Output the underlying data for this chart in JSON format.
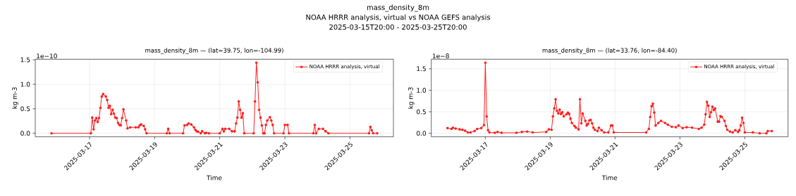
{
  "chart_data": [
    {
      "type": "line",
      "title": "mass_density_8m — (lat=39.75, lon=-104.99)",
      "xlabel": "Time",
      "ylabel": "kg m-3",
      "annotations": [
        "mass_density_8m",
        "NOAA HRRR analysis, virtual vs NOAA GEFS analysis",
        "2025-03-15T20:00 - 2025-03-25T20:00",
        "1e−10"
      ],
      "x": [
        "2025-03-15T20:00",
        "2025-03-17T01:00",
        "2025-03-17T02:00",
        "2025-03-17T03:00",
        "2025-03-17T04:00",
        "2025-03-17T05:00",
        "2025-03-17T06:00",
        "2025-03-17T07:00",
        "2025-03-17T08:00",
        "2025-03-17T09:00",
        "2025-03-17T10:00",
        "2025-03-17T12:00",
        "2025-03-17T13:00",
        "2025-03-17T14:00",
        "2025-03-17T15:00",
        "2025-03-17T16:00",
        "2025-03-17T17:00",
        "2025-03-17T18:00",
        "2025-03-17T19:00",
        "2025-03-17T20:00",
        "2025-03-17T21:00",
        "2025-03-17T22:00",
        "2025-03-17T23:00",
        "2025-03-18T00:00",
        "2025-03-18T01:00",
        "2025-03-18T03:00",
        "2025-03-18T04:00",
        "2025-03-18T06:00",
        "2025-03-18T10:00",
        "2025-03-18T12:00",
        "2025-03-18T13:00",
        "2025-03-18T14:00",
        "2025-03-18T16:00",
        "2025-03-18T17:00",
        "2025-03-18T18:00",
        "2025-03-19T09:00",
        "2025-03-19T10:00",
        "2025-03-19T11:00",
        "2025-03-19T21:00",
        "2025-03-19T22:00",
        "2025-03-20T00:00",
        "2025-03-20T01:00",
        "2025-03-20T03:00",
        "2025-03-20T05:00",
        "2025-03-20T06:00",
        "2025-03-20T07:00",
        "2025-03-20T08:00",
        "2025-03-20T10:00",
        "2025-03-20T11:00",
        "2025-03-20T13:00",
        "2025-03-20T14:00",
        "2025-03-20T16:00",
        "2025-03-21T00:00",
        "2025-03-21T02:00",
        "2025-03-21T03:00",
        "2025-03-21T04:00",
        "2025-03-21T07:00",
        "2025-03-21T09:00",
        "2025-03-21T11:00",
        "2025-03-21T12:00",
        "2025-03-21T13:00",
        "2025-03-21T14:00",
        "2025-03-21T15:00",
        "2025-03-21T16:00",
        "2025-03-21T17:00",
        "2025-03-21T18:00",
        "2025-03-22T01:00",
        "2025-03-22T02:00",
        "2025-03-22T03:00",
        "2025-03-22T04:00",
        "2025-03-22T05:00",
        "2025-03-22T06:00",
        "2025-03-22T07:00",
        "2025-03-22T08:00",
        "2025-03-22T09:00",
        "2025-03-22T10:00",
        "2025-03-22T11:00",
        "2025-03-22T13:00",
        "2025-03-22T14:00",
        "2025-03-22T15:00",
        "2025-03-22T16:00",
        "2025-03-22T23:00",
        "2025-03-23T00:00",
        "2025-03-23T02:00",
        "2025-03-23T03:00",
        "2025-03-23T21:00",
        "2025-03-23T22:00",
        "2025-03-23T23:00",
        "2025-03-24T01:00",
        "2025-03-24T04:00",
        "2025-03-24T06:00",
        "2025-03-24T08:00",
        "2025-03-25T14:00",
        "2025-03-25T15:00",
        "2025-03-25T16:00",
        "2025-03-25T17:00",
        "2025-03-25T20:00"
      ],
      "series": [
        {
          "name": "NOAA HRRR analysis, virtual",
          "color": "#ff2020",
          "values": [
            0,
            0,
            0.32,
            0.08,
            0.26,
            0.31,
            0.23,
            0.31,
            0.52,
            0.75,
            0.8,
            0.75,
            0.68,
            0.52,
            0.56,
            0.39,
            0.48,
            0.4,
            0.32,
            0.31,
            0.21,
            0.17,
            0.16,
            0.31,
            0.49,
            0.26,
            0.1,
            0.12,
            0.12,
            0.12,
            0.16,
            0.18,
            0.15,
            0.08,
            0,
            0,
            0.09,
            0,
            0,
            0.16,
            0.17,
            0.2,
            0.18,
            0.12,
            0.07,
            0.04,
            0.03,
            0,
            0.04,
            0,
            0.01,
            0,
            0,
            0.09,
            0.04,
            0.09,
            0.09,
            0.04,
            0.04,
            0.2,
            0.32,
            0.65,
            0.48,
            0.32,
            0.41,
            0,
            0,
            0.65,
            1.44,
            1.04,
            0.48,
            0.32,
            0.16,
            0,
            0,
            0.17,
            0.26,
            0.33,
            0.26,
            0.17,
            0,
            0,
            0.17,
            0.17,
            0,
            0,
            0.17,
            0,
            0.09,
            0.09,
            0.04,
            0,
            0,
            0.13,
            0.06,
            0,
            0
          ]
        }
      ],
      "marker": "circle",
      "grid": true,
      "legend": "top right",
      "xlim": [
        "2025-03-15T08:00",
        "2025-03-26T08:00"
      ],
      "xticks": [
        "2025-03-17",
        "2025-03-19",
        "2025-03-21",
        "2025-03-23",
        "2025-03-25"
      ],
      "ylim": [
        -0.072,
        1.512
      ],
      "yticks": [
        {
          "value": 0,
          "label": "0.0"
        },
        {
          "value": 0.5,
          "label": "0.5"
        },
        {
          "value": 1,
          "label": "1.0"
        },
        {
          "value": 1.5,
          "label": "1.5"
        }
      ]
    },
    {
      "type": "line",
      "title": "mass_density_8m — (lat=33.76, lon=-84.40)",
      "xlabel": "Time",
      "ylabel": "kg m-3",
      "annotations": [
        "1e−8"
      ],
      "x": [
        "2025-03-15T20:00",
        "2025-03-15T23:00",
        "2025-03-16T00:00",
        "2025-03-16T02:00",
        "2025-03-16T05:00",
        "2025-03-16T07:00",
        "2025-03-16T09:00",
        "2025-03-16T11:00",
        "2025-03-16T13:00",
        "2025-03-16T16:00",
        "2025-03-16T18:00",
        "2025-03-16T21:00",
        "2025-03-16T23:00",
        "2025-03-17T00:00",
        "2025-03-17T01:00",
        "2025-03-17T02:00",
        "2025-03-17T03:00",
        "2025-03-17T07:00",
        "2025-03-17T09:00",
        "2025-03-17T12:00",
        "2025-03-17T23:00",
        "2025-03-18T03:00",
        "2025-03-18T07:00",
        "2025-03-18T11:00",
        "2025-03-18T21:00",
        "2025-03-18T23:00",
        "2025-03-19T01:00",
        "2025-03-19T02:00",
        "2025-03-19T03:00",
        "2025-03-19T04:00",
        "2025-03-19T05:00",
        "2025-03-19T06:00",
        "2025-03-19T07:00",
        "2025-03-19T08:00",
        "2025-03-19T09:00",
        "2025-03-19T10:00",
        "2025-03-19T12:00",
        "2025-03-19T13:00",
        "2025-03-19T14:00",
        "2025-03-19T15:00",
        "2025-03-19T16:00",
        "2025-03-19T18:00",
        "2025-03-19T19:00",
        "2025-03-19T21:00",
        "2025-03-19T22:00",
        "2025-03-19T23:00",
        "2025-03-20T00:00",
        "2025-03-20T02:00",
        "2025-03-20T03:00",
        "2025-03-20T04:00",
        "2025-03-20T05:00",
        "2025-03-20T06:00",
        "2025-03-20T07:00",
        "2025-03-20T08:00",
        "2025-03-20T09:00",
        "2025-03-20T11:00",
        "2025-03-20T12:00",
        "2025-03-20T14:00",
        "2025-03-20T16:00",
        "2025-03-20T19:00",
        "2025-03-20T21:00",
        "2025-03-20T22:00",
        "2025-03-20T23:00",
        "2025-03-21T23:00",
        "2025-03-22T01:00",
        "2025-03-22T02:00",
        "2025-03-22T03:00",
        "2025-03-22T04:00",
        "2025-03-22T05:00",
        "2025-03-22T06:00",
        "2025-03-22T08:00",
        "2025-03-22T10:00",
        "2025-03-22T13:00",
        "2025-03-22T15:00",
        "2025-03-22T18:00",
        "2025-03-22T21:00",
        "2025-03-22T23:00",
        "2025-03-23T02:00",
        "2025-03-23T05:00",
        "2025-03-23T09:00",
        "2025-03-23T14:00",
        "2025-03-23T16:00",
        "2025-03-23T18:00",
        "2025-03-23T19:00",
        "2025-03-23T20:00",
        "2025-03-23T21:00",
        "2025-03-23T22:00",
        "2025-03-23T23:00",
        "2025-03-24T00:00",
        "2025-03-24T01:00",
        "2025-03-24T02:00",
        "2025-03-24T04:00",
        "2025-03-24T05:00",
        "2025-03-24T06:00",
        "2025-03-24T07:00",
        "2025-03-24T09:00",
        "2025-03-24T10:00",
        "2025-03-24T11:00",
        "2025-03-24T13:00",
        "2025-03-24T15:00",
        "2025-03-24T17:00",
        "2025-03-24T19:00",
        "2025-03-24T20:00",
        "2025-03-24T21:00",
        "2025-03-24T22:00",
        "2025-03-24T23:00",
        "2025-03-25T00:00",
        "2025-03-25T06:00",
        "2025-03-25T11:00",
        "2025-03-25T16:00",
        "2025-03-25T17:00",
        "2025-03-25T20:00"
      ],
      "series": [
        {
          "name": "NOAA HRRR analysis, virtual",
          "color": "#ff2020",
          "values": [
            0.12,
            0.1,
            0.13,
            0.11,
            0.09,
            0.08,
            0.06,
            0.02,
            0.02,
            0.05,
            0.1,
            0.12,
            0.19,
            1.64,
            0.39,
            0.07,
            0.02,
            0.01,
            0.03,
            0.01,
            0.01,
            0.03,
            0.04,
            0.02,
            0.03,
            0.09,
            0.08,
            0.39,
            0.58,
            0.79,
            0.52,
            0.46,
            0.55,
            0.45,
            0.49,
            0.39,
            0.44,
            0.48,
            0.45,
            0.34,
            0.24,
            0.17,
            0.13,
            0.09,
            0.79,
            0.23,
            0.46,
            0.29,
            0.18,
            0.22,
            0.3,
            0.31,
            0.23,
            0.13,
            0.08,
            0.05,
            0.13,
            0.07,
            0.02,
            0.02,
            0.18,
            0.18,
            0.02,
            0.02,
            0.1,
            0.38,
            0.63,
            0.69,
            0.48,
            0.18,
            0.24,
            0.29,
            0.24,
            0.2,
            0.15,
            0.14,
            0.18,
            0.12,
            0.14,
            0.13,
            0.1,
            0.13,
            0.2,
            0.44,
            0.73,
            0.64,
            0.38,
            0.49,
            0.62,
            0.54,
            0.58,
            0.27,
            0.27,
            0.4,
            0.38,
            0.29,
            0.17,
            0.08,
            0.04,
            0.02,
            0.07,
            0.03,
            0.07,
            0.18,
            0.36,
            0.24,
            0.02,
            0.02,
            0,
            0,
            0.05,
            0.05
          ]
        }
      ],
      "marker": "circle",
      "grid": true,
      "legend": "top right",
      "xlim": [
        "2025-03-15T08:00",
        "2025-03-26T08:00"
      ],
      "xticks": [
        "2025-03-17",
        "2025-03-19",
        "2025-03-21",
        "2025-03-23",
        "2025-03-25"
      ],
      "ylim": [
        -0.082,
        1.722
      ],
      "yticks": [
        {
          "value": 0,
          "label": "0.0"
        },
        {
          "value": 0.5,
          "label": "0.5"
        },
        {
          "value": 1,
          "label": "1.0"
        },
        {
          "value": 1.5,
          "label": "1.5"
        }
      ]
    }
  ]
}
